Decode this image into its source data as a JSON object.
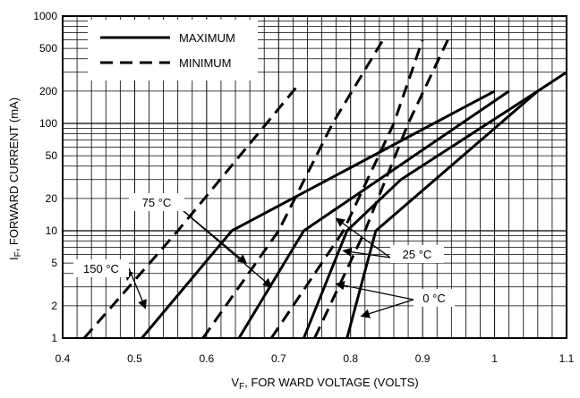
{
  "chart_data": {
    "type": "line",
    "xlabel_main": "V",
    "xlabel_sub": "F",
    "xlabel_rest": ", FOR WARD VOLTAGE (VOLTS)",
    "ylabel_main": "I",
    "ylabel_sub": "F",
    "ylabel_rest": ", FORWARD CURRENT  (mA)",
    "xlim": [
      0.4,
      1.1
    ],
    "ylim": [
      1,
      1000
    ],
    "y_scale": "log",
    "grid": true,
    "x_ticks": [
      {
        "v": 0.4,
        "label": "0.4"
      },
      {
        "v": 0.5,
        "label": "0.5"
      },
      {
        "v": 0.6,
        "label": "0.6"
      },
      {
        "v": 0.7,
        "label": "0.7"
      },
      {
        "v": 0.8,
        "label": "0.8"
      },
      {
        "v": 0.9,
        "label": "0.9"
      },
      {
        "v": 1.0,
        "label": "1"
      },
      {
        "v": 1.1,
        "label": "1.1"
      }
    ],
    "y_ticks": [
      {
        "v": 1,
        "label": "1"
      },
      {
        "v": 2,
        "label": "2"
      },
      {
        "v": 5,
        "label": "5"
      },
      {
        "v": 10,
        "label": "10"
      },
      {
        "v": 20,
        "label": "20"
      },
      {
        "v": 50,
        "label": "50"
      },
      {
        "v": 100,
        "label": "100"
      },
      {
        "v": 200,
        "label": "200"
      },
      {
        "v": 500,
        "label": "500"
      },
      {
        "v": 1000,
        "label": "1000"
      }
    ],
    "legend": {
      "placement": "top-left",
      "entries": [
        {
          "label": "MAXIMUM",
          "style": "solid"
        },
        {
          "label": "MINIMUM",
          "style": "dashed"
        }
      ]
    },
    "series": [
      {
        "temperature": "150 °C",
        "style": "solid",
        "x": [
          0.51,
          0.635,
          1.0
        ],
        "y": [
          1,
          10,
          200
        ]
      },
      {
        "temperature": "150 °C",
        "style": "dashed",
        "x": [
          0.43,
          0.56,
          0.73
        ],
        "y": [
          1,
          10,
          240
        ]
      },
      {
        "temperature": "75 °C",
        "style": "solid",
        "x": [
          0.645,
          0.735,
          1.02
        ],
        "y": [
          1,
          10,
          200
        ]
      },
      {
        "temperature": "75 °C",
        "style": "dashed",
        "x": [
          0.595,
          0.7,
          0.775,
          0.845
        ],
        "y": [
          1,
          10,
          100,
          600
        ]
      },
      {
        "temperature": "25 °C",
        "style": "solid",
        "x": [
          0.735,
          0.795,
          0.87,
          1.06,
          1.1
        ],
        "y": [
          1,
          10,
          30,
          200,
          300
        ]
      },
      {
        "temperature": "25 °C",
        "style": "dashed",
        "x": [
          0.69,
          0.79,
          0.86,
          0.9
        ],
        "y": [
          1,
          10,
          100,
          600
        ]
      },
      {
        "temperature": "0 °C",
        "style": "solid",
        "x": [
          0.795,
          0.835,
          1.06
        ],
        "y": [
          1,
          10,
          200
        ]
      },
      {
        "temperature": "0 °C",
        "style": "dashed",
        "x": [
          0.75,
          0.82,
          0.88,
          0.935
        ],
        "y": [
          1,
          10,
          100,
          600
        ]
      }
    ],
    "annotations": [
      {
        "label": "75 °C",
        "targets": [
          {
            "x": 0.655,
            "y": 5
          },
          {
            "x": 0.69,
            "y": 3
          }
        ]
      },
      {
        "label": "150 °C",
        "targets": [
          {
            "x": 0.49,
            "y": 3.5
          },
          {
            "x": 0.515,
            "y": 1.9
          }
        ]
      },
      {
        "label": "25 °C",
        "targets": [
          {
            "x": 0.79,
            "y": 6.5
          },
          {
            "x": 0.78,
            "y": 13
          }
        ]
      },
      {
        "label": "0 °C",
        "targets": [
          {
            "x": 0.78,
            "y": 3.2
          },
          {
            "x": 0.815,
            "y": 1.6
          }
        ]
      }
    ]
  }
}
